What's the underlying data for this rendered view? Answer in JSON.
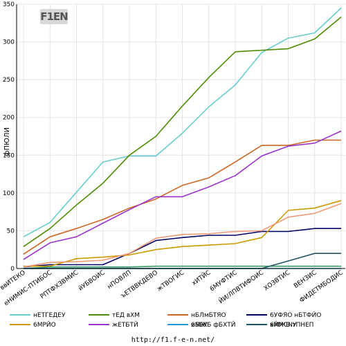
{
  "logo": {
    "text": "F1EN"
  },
  "footer": {
    "url": "http://f1.f-e-n.net/"
  },
  "chart_data": {
    "type": "line",
    "title": "",
    "xlabel": "",
    "ylabel": "фПЮЛИ",
    "ylim": [
      0,
      350
    ],
    "yticks": [
      0,
      50,
      100,
      150,
      200,
      250,
      300,
      350
    ],
    "grid": true,
    "legend_position": "bottom",
    "categories": [
      "ввИТЕКО",
      "еНИМИС-ПТИБОС",
      "РПТФХЗВМИС",
      "йУБВОИС",
      "нПОВЛП",
      "ъЕТВВКДЕВО",
      "жТВОГИС",
      "хИТЙС",
      "6МУФТИС",
      "ЙИ/ЛПВТИФОИС",
      "ХОЗВТИС",
      "ВЕНЗИС",
      "ФИДЕТМБОДИС"
    ],
    "series": [
      {
        "name": "нЕТГЕДЕУ",
        "color": "#66cccc",
        "values": [
          42,
          61,
          101,
          141,
          149,
          149,
          179,
          214,
          243,
          286,
          305,
          312,
          345
        ]
      },
      {
        "name": "тЕД вХМ",
        "color": "#4d8c00",
        "values": [
          29,
          53,
          84,
          113,
          150,
          175,
          215,
          253,
          287,
          289,
          291,
          304,
          333
        ]
      },
      {
        "name": "нБЛмБТЯО",
        "color": "#cc6622",
        "values": [
          19,
          42,
          53,
          65,
          80,
          92,
          110,
          120,
          141,
          163,
          163,
          170,
          170
        ]
      },
      {
        "name": "6УФЯО нБТФЙО",
        "color": "#000066",
        "values": [
          2,
          5,
          5,
          5,
          20,
          37,
          41,
          44,
          44,
          49,
          49,
          53,
          53
        ]
      },
      {
        "name": "6МРЙО",
        "color": "#cc9900",
        "values": [
          3,
          3,
          13,
          15,
          18,
          25,
          29,
          31,
          33,
          41,
          77,
          80,
          90
        ]
      },
      {
        "name": "жЕТБТЙ",
        "color": "#9933cc",
        "values": [
          12,
          34,
          42,
          60,
          78,
          95,
          95,
          108,
          123,
          149,
          162,
          166,
          182
        ]
      },
      {
        "name": "6МЖБ фБХТЙ",
        "color": "#ee9977",
        "values": [
          2,
          8,
          9,
          11,
          20,
          40,
          45,
          46,
          49,
          50,
          68,
          73,
          86
        ]
      },
      {
        "name": "6МЖБ тПНЕП",
        "color": "#339966",
        "values": [
          0,
          2,
          2,
          2,
          2,
          3,
          3,
          3,
          3,
          3,
          3,
          3,
          3
        ]
      },
      {
        "name": "иББУ",
        "color": "#2299dd",
        "values": [
          0,
          0,
          0,
          0,
          0,
          0,
          0,
          0,
          0,
          0,
          0,
          0,
          0
        ]
      },
      {
        "name": "хЙМСNУ",
        "color": "#225566",
        "values": [
          0,
          0,
          0,
          0,
          0,
          0,
          0,
          0,
          0,
          0,
          10,
          20,
          20
        ]
      }
    ]
  }
}
